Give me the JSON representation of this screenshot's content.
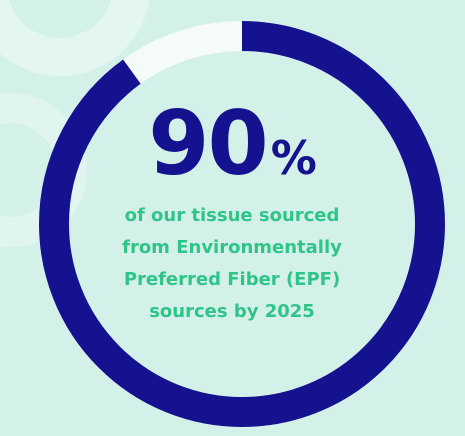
{
  "stat": {
    "value": "90",
    "unit": "%",
    "progress_fraction": 0.9
  },
  "caption": {
    "line1": "of our tissue sourced",
    "line2": "from Environmentally",
    "line3": "Preferred Fiber (EPF)",
    "line4": "sources by 2025"
  },
  "colors": {
    "background": "#d4f1e9",
    "ring_fill": "#15128f",
    "ring_track": "#f4fbf8",
    "headline": "#15128f",
    "caption": "#2fc48a"
  }
}
